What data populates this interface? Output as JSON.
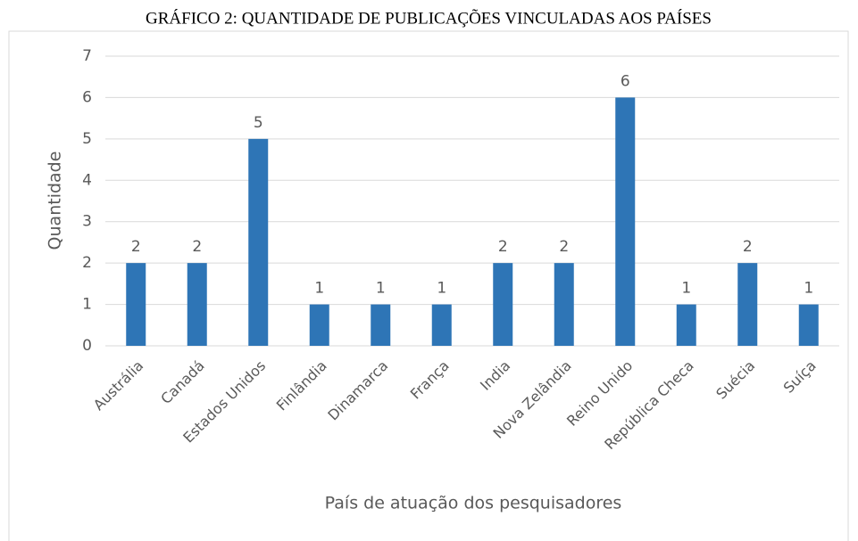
{
  "chart_data": {
    "type": "bar",
    "title": "GRÁFICO 2: QUANTIDADE DE PUBLICAÇÕES VINCULADAS AOS PAÍSES",
    "x_label": "País de atuação dos pesquisadores",
    "y_label": "Quantidade",
    "categories": [
      "Austrália",
      "Canadá",
      "Estados Unidos",
      "Finlândia",
      "Dinamarca",
      "França",
      "India",
      "Nova Zelândia",
      "Reino Unido",
      "República Checa",
      "Suécia",
      "Suíça"
    ],
    "values": [
      2,
      2,
      5,
      1,
      1,
      1,
      2,
      2,
      6,
      1,
      2,
      1
    ],
    "color": "#2e75b6",
    "ylim": [
      0,
      7
    ],
    "yticks": [
      0,
      1,
      2,
      3,
      4,
      5,
      6,
      7
    ],
    "grid": true
  }
}
